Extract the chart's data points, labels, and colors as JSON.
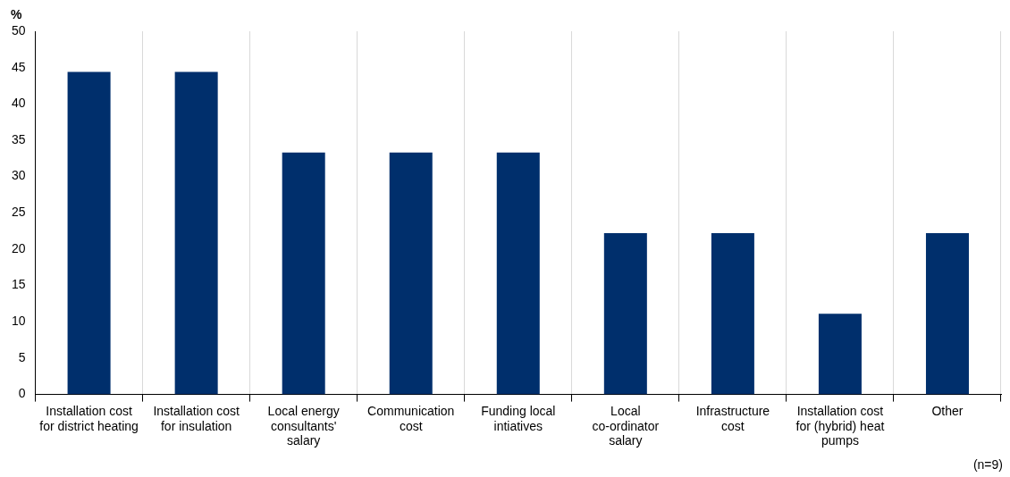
{
  "chart_data": {
    "type": "bar",
    "ylabel": "%",
    "categories": [
      "Installation cost for district heating",
      "Installation cost for insulation",
      "Local energy consultants' salary",
      "Communication cost",
      "Funding local intiatives",
      "Local co-ordinator salary",
      "Infrastructure cost",
      "Installation cost for (hybrid) heat pumps",
      "Other"
    ],
    "values": [
      44.4,
      44.4,
      33.3,
      33.3,
      33.3,
      22.2,
      22.2,
      11.1,
      22.2
    ],
    "color": "#002f6c",
    "ylim": [
      0,
      50
    ],
    "yticks": [
      0,
      5,
      10,
      15,
      20,
      25,
      30,
      35,
      40,
      45,
      50
    ],
    "grid": "x",
    "legend": false,
    "annotations": [
      "(n=9)"
    ]
  }
}
